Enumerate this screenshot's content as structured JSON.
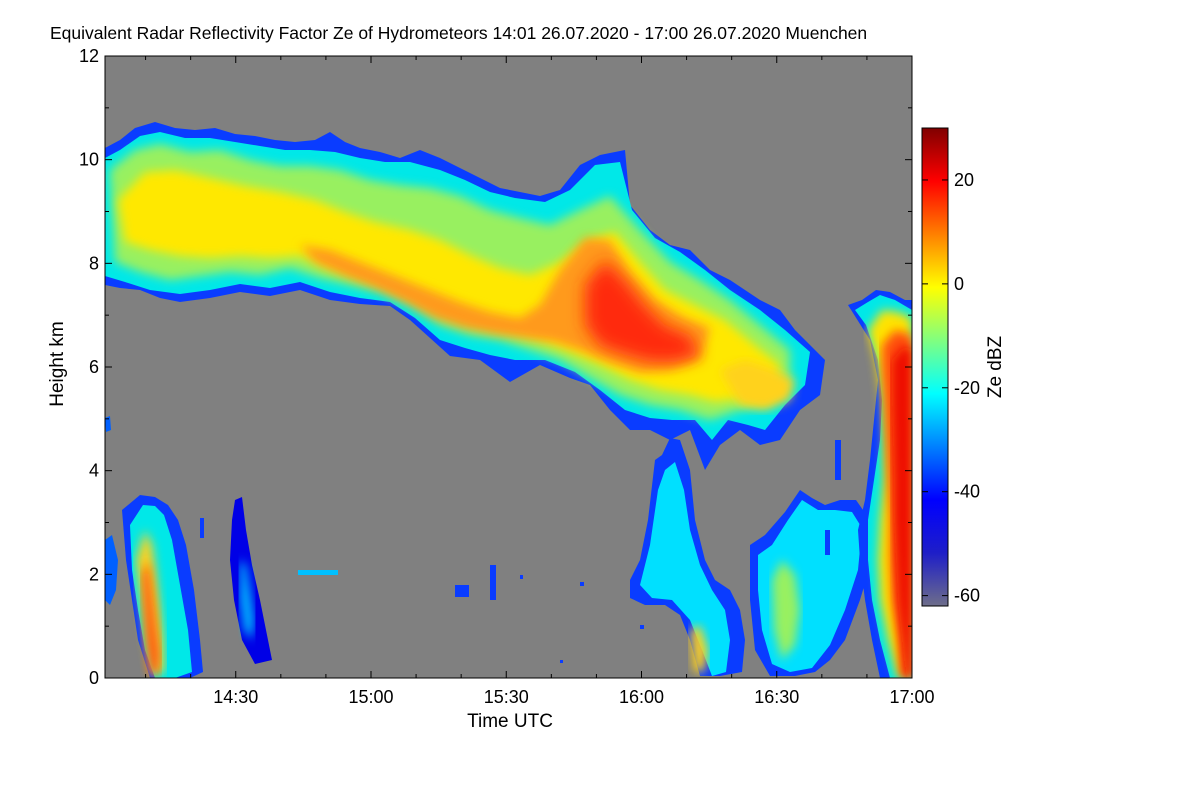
{
  "chart_data": {
    "type": "heatmap",
    "title": "Equivalent Radar Reflectivity Factor Ze of Hydrometeors   14:01 26.07.2020 - 17:00 26.07.2020 Muenchen",
    "xlabel": "Time UTC",
    "ylabel": "Height km",
    "x_range": [
      "14:01",
      "17:00"
    ],
    "xticks": [
      "14:30",
      "15:00",
      "15:30",
      "16:00",
      "16:30",
      "17:00"
    ],
    "ylim": [
      0,
      12
    ],
    "yticks": [
      "0",
      "2",
      "4",
      "6",
      "8",
      "10",
      "12"
    ],
    "background_color": "#808080",
    "colorbar": {
      "label": "Ze dBZ",
      "range": [
        -62,
        30
      ],
      "ticks": [
        "-60",
        "-40",
        "-20",
        "0",
        "20"
      ],
      "colormap": [
        "#6e6e8a",
        "#1e1ec8",
        "#0000ff",
        "#0080ff",
        "#00ffff",
        "#80ff80",
        "#ffff00",
        "#ff8000",
        "#ff0000",
        "#800000"
      ]
    },
    "features": [
      {
        "name": "upper-cloud-layer",
        "t_start": "14:01",
        "t_end": "15:55",
        "base_km": [
          7.6,
          5.8
        ],
        "top_km": [
          10.4,
          10.0
        ],
        "ze_dbz_range": [
          -40,
          15
        ]
      },
      {
        "name": "mid-level-precipitation",
        "t_start": "15:45",
        "t_end": "16:40",
        "base_km": [
          5.2,
          4.8
        ],
        "top_km": [
          9.5,
          6.0
        ],
        "ze_dbz_range": [
          -40,
          20
        ]
      },
      {
        "name": "rain-shaft-1",
        "t_start": "14:10",
        "t_end": "14:20",
        "base_km": 0.0,
        "top_km": 3.5,
        "ze_dbz_range": [
          -40,
          20
        ]
      },
      {
        "name": "rain-shaft-2",
        "t_start": "14:30",
        "t_end": "14:35",
        "base_km": 0.0,
        "top_km": 3.2,
        "ze_dbz_range": [
          -50,
          -30
        ]
      },
      {
        "name": "convective-cell-1",
        "t_start": "15:55",
        "t_end": "16:20",
        "base_km": 0.0,
        "top_km": 4.4,
        "ze_dbz_range": [
          -45,
          -15
        ]
      },
      {
        "name": "convective-cell-2",
        "t_start": "16:25",
        "t_end": "16:55",
        "base_km": 0.0,
        "top_km": 3.5,
        "ze_dbz_range": [
          -45,
          -15
        ]
      },
      {
        "name": "intense-storm-core",
        "t_start": "16:50",
        "t_end": "17:00",
        "base_km": 0.0,
        "top_km": 7.2,
        "ze_dbz_range": [
          -30,
          25
        ]
      }
    ]
  }
}
